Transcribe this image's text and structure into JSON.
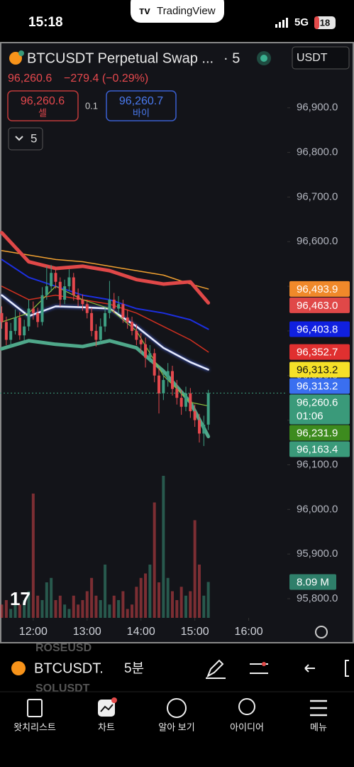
{
  "status_bar": {
    "time": "15:18",
    "network": "5G",
    "battery": "18"
  },
  "banner": {
    "title": "TradingView"
  },
  "header": {
    "symbol": "BTCUSDT Perpetual Swap ...",
    "interval": "· 5",
    "currency": "USDT",
    "last": "96,260.6",
    "change": "−279.4 (−0.29%)",
    "sell_price": "96,260.6",
    "sell_label": "셀",
    "spread": "0.1",
    "buy_price": "96,260.7",
    "buy_label": "바이",
    "indicator_count": "5"
  },
  "chart_data": {
    "type": "candlestick",
    "x": [
      "11:25",
      "11:30",
      "11:35",
      "11:40",
      "11:45",
      "11:50",
      "11:55",
      "12:00",
      "12:05",
      "12:10",
      "12:15",
      "12:20",
      "12:25",
      "12:30",
      "12:35",
      "12:40",
      "12:45",
      "12:50",
      "12:55",
      "13:00",
      "13:05",
      "13:10",
      "13:15",
      "13:20",
      "13:25",
      "13:30",
      "13:35",
      "13:40",
      "13:45",
      "13:50",
      "13:55",
      "14:00",
      "14:05",
      "14:10",
      "14:15",
      "14:20",
      "14:25",
      "14:30",
      "14:35",
      "14:40",
      "14:45",
      "14:50",
      "14:55",
      "15:00",
      "15:05",
      "15:10",
      "15:15"
    ],
    "open": [
      96440,
      96420,
      96380,
      96400,
      96430,
      96390,
      96410,
      96450,
      96440,
      96420,
      96480,
      96500,
      96530,
      96510,
      96470,
      96500,
      96520,
      96480,
      96470,
      96460,
      96440,
      96400,
      96380,
      96410,
      96440,
      96470,
      96450,
      96460,
      96430,
      96420,
      96400,
      96380,
      96370,
      96340,
      96350,
      96300,
      96260,
      96290,
      96310,
      96270,
      96250,
      96230,
      96260,
      96220,
      96200,
      96170,
      96190
    ],
    "high": [
      96455,
      96432,
      96418,
      96448,
      96442,
      96425,
      96470,
      96466,
      96452,
      96498,
      96545,
      96548,
      96542,
      96520,
      96515,
      96538,
      96530,
      96495,
      96482,
      96470,
      96452,
      96415,
      96428,
      96455,
      96512,
      96485,
      96478,
      96470,
      96448,
      96432,
      96415,
      96395,
      96385,
      96368,
      96360,
      96318,
      96305,
      96328,
      96322,
      96290,
      96268,
      96275,
      96272,
      96235,
      96214,
      96210,
      96268
    ],
    "low": [
      96405,
      96368,
      96365,
      96392,
      96380,
      96378,
      96400,
      96425,
      96408,
      96412,
      96470,
      96488,
      96495,
      96455,
      96460,
      96490,
      96468,
      96455,
      96445,
      96428,
      96388,
      96365,
      96370,
      96398,
      96428,
      96440,
      96438,
      96418,
      96405,
      96390,
      96368,
      96350,
      96318,
      96330,
      96285,
      96215,
      96245,
      96275,
      96255,
      96235,
      96212,
      96220,
      96205,
      96185,
      96150,
      96142,
      96178
    ],
    "close": [
      96420,
      96380,
      96400,
      96430,
      96390,
      96410,
      96450,
      96440,
      96420,
      96480,
      96500,
      96530,
      96510,
      96470,
      96500,
      96520,
      96480,
      96470,
      96460,
      96440,
      96400,
      96380,
      96410,
      96440,
      96470,
      96450,
      96460,
      96430,
      96420,
      96400,
      96380,
      96370,
      96340,
      96350,
      96300,
      96260,
      96290,
      96310,
      96270,
      96250,
      96230,
      96260,
      96220,
      96200,
      96170,
      96190,
      96260.6
    ],
    "volume": [
      3,
      4,
      2,
      5,
      3,
      4,
      6,
      28,
      5,
      4,
      8,
      9,
      4,
      5,
      3,
      2,
      5,
      3,
      4,
      6,
      9,
      5,
      4,
      12,
      3,
      5,
      4,
      6,
      2,
      3,
      7,
      9,
      10,
      12,
      26,
      8,
      32,
      9,
      6,
      4,
      7,
      5,
      6,
      22,
      12,
      5,
      8.09
    ],
    "volume_ylim": [
      0,
      40
    ],
    "volume_label": "8.09 M",
    "up_color": "#3d9e82",
    "down_color": "#e5484d",
    "xlim": [
      "11:23",
      "16:43"
    ],
    "xticks": [
      "12:00",
      "13:00",
      "14:00",
      "15:00",
      "16:00"
    ],
    "ylim": [
      95757,
      97046
    ],
    "yticks": [
      {
        "value": 95800,
        "label": "95,800.0"
      },
      {
        "value": 95900,
        "label": "95,900.0"
      },
      {
        "value": 96000,
        "label": "96,000.0"
      },
      {
        "value": 96100,
        "label": "96,100.0"
      },
      {
        "value": 96200,
        "label": "96,200.0"
      },
      {
        "value": 96300,
        "label": "96,300.0"
      },
      {
        "value": 96400,
        "label": "96,400.0"
      },
      {
        "value": 96500,
        "label": "96,500.0"
      },
      {
        "value": 96600,
        "label": "96,600.0"
      },
      {
        "value": 96700,
        "label": "96,700.0"
      },
      {
        "value": 96800,
        "label": "96,800.0"
      },
      {
        "value": 96900,
        "label": "96,900.0"
      }
    ],
    "lines": [
      {
        "color": "#f0a030",
        "width": 1.5,
        "x": [
          "11:25",
          "11:55",
          "12:25",
          "12:55",
          "13:25",
          "13:55",
          "14:25",
          "14:55",
          "15:15"
        ],
        "values": [
          96580,
          96570,
          96560,
          96555,
          96545,
          96535,
          96525,
          96505,
          96493.9
        ]
      },
      {
        "color": "#e04848",
        "width": 5,
        "x": [
          "11:25",
          "11:55",
          "12:25",
          "12:55",
          "13:25",
          "13:55",
          "14:25",
          "14:55",
          "15:15"
        ],
        "values": [
          96620,
          96555,
          96540,
          96545,
          96535,
          96515,
          96505,
          96510,
          96463
        ]
      },
      {
        "color": "#d03020",
        "width": 1.5,
        "x": [
          "11:25",
          "11:55",
          "12:25",
          "12:55",
          "13:25",
          "13:55",
          "14:25",
          "14:55",
          "15:15"
        ],
        "values": [
          96500,
          96470,
          96480,
          96470,
          96460,
          96440,
          96410,
          96380,
          96352.7
        ]
      },
      {
        "color": "#1c2fe0",
        "width": 2,
        "x": [
          "11:25",
          "11:55",
          "12:25",
          "12:55",
          "13:25",
          "13:55",
          "14:25",
          "14:55",
          "15:15"
        ],
        "values": [
          96560,
          96520,
          96500,
          96480,
          96470,
          96450,
          96440,
          96425,
          96403.8
        ]
      },
      {
        "color": "#e6ecff",
        "width": 2.5,
        "glow": true,
        "x": [
          "11:25",
          "11:55",
          "12:25",
          "12:55",
          "13:25",
          "13:55",
          "14:25",
          "14:55",
          "15:15"
        ],
        "values": [
          96480,
          96433,
          96455,
          96453,
          96450,
          96410,
          96362,
          96330,
          96313.2
        ]
      },
      {
        "color": "#4fa88a",
        "width": 5,
        "x": [
          "11:25",
          "11:55",
          "12:25",
          "12:55",
          "13:25",
          "13:55",
          "14:25",
          "14:55",
          "15:15"
        ],
        "values": [
          96360,
          96378,
          96370,
          96365,
          96378,
          96362,
          96310,
          96240,
          96163.4
        ]
      },
      {
        "color": "#8fbf3f",
        "width": 1.2,
        "x": [
          "11:25",
          "11:55",
          "12:25",
          "12:55",
          "13:25",
          "13:55",
          "14:25",
          "14:55",
          "15:15"
        ],
        "values": [
          96420,
          96440,
          96500,
          96470,
          96450,
          96400,
          96300,
          96240,
          96231.9
        ]
      }
    ],
    "price_labels": [
      {
        "value": 96493.9,
        "label": "96,493.9",
        "color": "#f0892a",
        "text_color": "#ffffff"
      },
      {
        "value": 96463.0,
        "label": "96,463.0",
        "color": "#e04848",
        "text_color": "#ffffff"
      },
      {
        "value": 96403.8,
        "label": "96,403.8",
        "color": "#1020e0",
        "text_color": "#ffffff"
      },
      {
        "value": 96352.7,
        "label": "96,352.7",
        "color": "#e03030",
        "text_color": "#ffffff"
      },
      {
        "value": 96313.2,
        "label": "96,313.2",
        "color": "#f5e028",
        "text_color": "#111111"
      },
      {
        "value": 96313.2,
        "label": "96,313.2",
        "color": "#3a6ff0",
        "text_color": "#ffffff"
      },
      {
        "value": 96260.6,
        "label": "96,260.6",
        "color": "#3a9a7a",
        "text_color": "#ffffff",
        "sub": "01:06"
      },
      {
        "value": 96231.9,
        "label": "96,231.9",
        "color": "#3d8b1e",
        "text_color": "#ffffff"
      },
      {
        "value": 96163.4,
        "label": "96,163.4",
        "color": "#3a9a7a",
        "text_color": "#ffffff"
      }
    ]
  },
  "symbol_bar": {
    "symbol": "BTCUSDT.",
    "interval": "5분",
    "watermarks": [
      "ROSEUSD",
      "SOLUSDT"
    ]
  },
  "tabs": [
    "왓치리스트",
    "차트",
    "알아 보기",
    "아이디어",
    "메뉴"
  ]
}
